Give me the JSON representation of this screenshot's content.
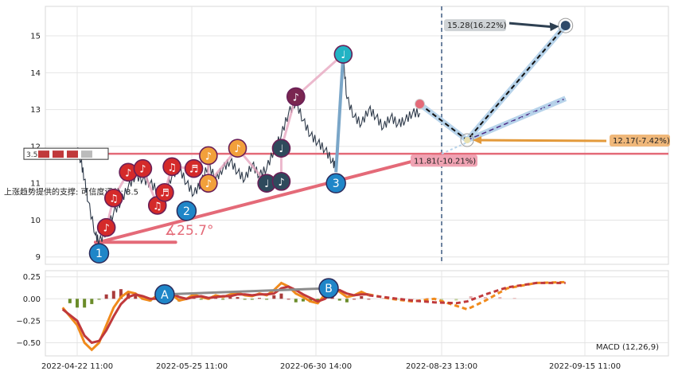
{
  "chart_data": [
    {
      "type": "line",
      "panel": "price",
      "ylim": [
        8.8,
        15.8
      ],
      "yticks": [
        9,
        10,
        11,
        12,
        13,
        14,
        15
      ],
      "x_dates": [
        "2022-04-22 11:00",
        "2022-05-25 11:00",
        "2022-06-30 14:00",
        "2022-08-23 13:00",
        "2022-09-15 11:00"
      ],
      "grid": true,
      "price_series": [
        [
          0.0,
          11.9
        ],
        [
          0.01,
          11.6
        ],
        [
          0.02,
          11.1
        ],
        [
          0.03,
          10.5
        ],
        [
          0.05,
          9.6
        ],
        [
          0.06,
          9.4
        ],
        [
          0.08,
          9.7
        ],
        [
          0.1,
          10.2
        ],
        [
          0.12,
          10.5
        ],
        [
          0.14,
          10.9
        ],
        [
          0.16,
          11.2
        ],
        [
          0.18,
          11.1
        ],
        [
          0.2,
          11.0
        ],
        [
          0.22,
          10.8
        ],
        [
          0.24,
          10.7
        ],
        [
          0.26,
          11.2
        ],
        [
          0.28,
          11.4
        ],
        [
          0.3,
          11.0
        ],
        [
          0.32,
          10.7
        ],
        [
          0.34,
          11.0
        ],
        [
          0.36,
          11.5
        ],
        [
          0.38,
          11.1
        ],
        [
          0.4,
          11.4
        ],
        [
          0.42,
          11.6
        ],
        [
          0.44,
          11.3
        ],
        [
          0.46,
          11.1
        ],
        [
          0.48,
          11.5
        ],
        [
          0.5,
          11.2
        ],
        [
          0.52,
          11.4
        ],
        [
          0.54,
          11.9
        ],
        [
          0.56,
          12.3
        ],
        [
          0.58,
          12.9
        ],
        [
          0.6,
          13.2
        ],
        [
          0.62,
          12.7
        ],
        [
          0.64,
          12.3
        ],
        [
          0.66,
          12.1
        ],
        [
          0.68,
          11.9
        ],
        [
          0.7,
          11.6
        ],
        [
          0.71,
          11.4
        ],
        [
          0.72,
          12.6
        ],
        [
          0.73,
          14.4
        ],
        [
          0.74,
          13.3
        ],
        [
          0.76,
          12.8
        ],
        [
          0.78,
          12.6
        ],
        [
          0.8,
          13.0
        ],
        [
          0.82,
          12.8
        ],
        [
          0.84,
          12.5
        ],
        [
          0.86,
          12.8
        ],
        [
          0.88,
          12.6
        ],
        [
          0.9,
          12.7
        ],
        [
          0.92,
          12.9
        ],
        [
          0.94,
          12.9
        ]
      ],
      "support_line": {
        "label": "上涨趋势提供的支撑: 可信度评分: 3.5",
        "confidence": "3.5",
        "from": [
          0.06,
          9.4
        ],
        "to": [
          1.0,
          11.8
        ]
      },
      "horizontal_level": 11.8,
      "angle_label": "∡25.7°",
      "waves": [
        {
          "label": "1",
          "x": 0.06,
          "y": 9.1,
          "color": "#1f86c8"
        },
        {
          "label": "2",
          "x": 0.3,
          "y": 10.25,
          "color": "#1f86c8"
        },
        {
          "label": "3",
          "x": 0.71,
          "y": 11.0,
          "color": "#1f86c8"
        }
      ],
      "notes": [
        {
          "x": 0.08,
          "y": 9.8,
          "glyph": "♪",
          "color": "#d42a2a"
        },
        {
          "x": 0.1,
          "y": 10.6,
          "glyph": "♫",
          "color": "#d42a2a"
        },
        {
          "x": 0.14,
          "y": 11.3,
          "glyph": "♪",
          "color": "#d42a2a"
        },
        {
          "x": 0.18,
          "y": 11.4,
          "glyph": "♪",
          "color": "#d42a2a"
        },
        {
          "x": 0.22,
          "y": 10.4,
          "glyph": "♫",
          "color": "#d42a2a"
        },
        {
          "x": 0.24,
          "y": 10.75,
          "glyph": "♬",
          "color": "#d42a2a"
        },
        {
          "x": 0.26,
          "y": 11.45,
          "glyph": "♫",
          "color": "#d42a2a"
        },
        {
          "x": 0.32,
          "y": 11.4,
          "glyph": "♬",
          "color": "#d42a2a"
        },
        {
          "x": 0.36,
          "y": 11.75,
          "glyph": "♪",
          "color": "#f2a03b"
        },
        {
          "x": 0.36,
          "y": 11.0,
          "glyph": "♪",
          "color": "#f2a03b"
        },
        {
          "x": 0.44,
          "y": 11.95,
          "glyph": "♪",
          "color": "#f2a03b"
        },
        {
          "x": 0.52,
          "y": 11.0,
          "glyph": "♩",
          "color": "#2e4a5c"
        },
        {
          "x": 0.56,
          "y": 11.05,
          "glyph": "♪",
          "color": "#2e4a5c"
        },
        {
          "x": 0.56,
          "y": 11.95,
          "glyph": "♩",
          "color": "#2e4a5c"
        },
        {
          "x": 0.6,
          "y": 13.35,
          "glyph": "♪",
          "color": "#7a2650"
        },
        {
          "x": 0.73,
          "y": 14.5,
          "glyph": "♩",
          "color": "#22b3c4"
        }
      ],
      "forecast": {
        "start": [
          0.94,
          13.15
        ],
        "mid": [
          1.07,
          12.17
        ],
        "upper_target": {
          "x": 1.34,
          "y": 15.28,
          "label": "15.28(16.22%)"
        },
        "middle_target": {
          "x": 1.34,
          "y": 13.3
        },
        "arrow_label": "12.17(-7.42%)",
        "support_label": "11.81(-10.21%)"
      },
      "legend_badge": "3.5"
    },
    {
      "type": "line",
      "panel": "macd",
      "title": "MACD (12,26,9)",
      "ylim": [
        -0.65,
        0.32
      ],
      "yticks": [
        -0.5,
        -0.25,
        0.0,
        0.25
      ],
      "yticklabels": [
        "−0.50",
        "−0.25",
        "0.00",
        "0.25"
      ],
      "markers": [
        {
          "label": "A",
          "x": 0.24,
          "y": 0.05
        },
        {
          "label": "B",
          "x": 0.69,
          "y": 0.12
        }
      ],
      "macd_line": [
        [
          -0.04,
          -0.1
        ],
        [
          0.0,
          -0.3
        ],
        [
          0.02,
          -0.5
        ],
        [
          0.04,
          -0.58
        ],
        [
          0.06,
          -0.5
        ],
        [
          0.08,
          -0.3
        ],
        [
          0.1,
          -0.1
        ],
        [
          0.12,
          0.02
        ],
        [
          0.14,
          0.08
        ],
        [
          0.16,
          0.06
        ],
        [
          0.18,
          0.0
        ],
        [
          0.2,
          -0.02
        ],
        [
          0.22,
          0.04
        ],
        [
          0.24,
          0.08
        ],
        [
          0.26,
          0.05
        ],
        [
          0.28,
          -0.02
        ],
        [
          0.3,
          0.0
        ],
        [
          0.32,
          0.05
        ],
        [
          0.34,
          0.02
        ],
        [
          0.36,
          0.0
        ],
        [
          0.38,
          0.04
        ],
        [
          0.4,
          0.02
        ],
        [
          0.42,
          0.05
        ],
        [
          0.44,
          0.07
        ],
        [
          0.46,
          0.04
        ],
        [
          0.48,
          0.03
        ],
        [
          0.5,
          0.06
        ],
        [
          0.52,
          0.04
        ],
        [
          0.54,
          0.1
        ],
        [
          0.56,
          0.18
        ],
        [
          0.58,
          0.14
        ],
        [
          0.6,
          0.06
        ],
        [
          0.62,
          0.02
        ],
        [
          0.64,
          -0.03
        ],
        [
          0.66,
          -0.05
        ],
        [
          0.68,
          0.05
        ],
        [
          0.7,
          0.14
        ],
        [
          0.72,
          0.08
        ],
        [
          0.74,
          0.02
        ],
        [
          0.76,
          0.04
        ],
        [
          0.78,
          0.08
        ],
        [
          0.8,
          0.04
        ]
      ],
      "signal_line": [
        [
          -0.04,
          -0.12
        ],
        [
          0.0,
          -0.25
        ],
        [
          0.02,
          -0.42
        ],
        [
          0.04,
          -0.5
        ],
        [
          0.06,
          -0.48
        ],
        [
          0.08,
          -0.36
        ],
        [
          0.1,
          -0.2
        ],
        [
          0.12,
          -0.06
        ],
        [
          0.14,
          0.02
        ],
        [
          0.16,
          0.05
        ],
        [
          0.18,
          0.03
        ],
        [
          0.2,
          0.0
        ],
        [
          0.22,
          0.0
        ],
        [
          0.24,
          0.05
        ],
        [
          0.26,
          0.06
        ],
        [
          0.28,
          0.02
        ],
        [
          0.3,
          0.0
        ],
        [
          0.32,
          0.02
        ],
        [
          0.34,
          0.03
        ],
        [
          0.36,
          0.01
        ],
        [
          0.38,
          0.02
        ],
        [
          0.4,
          0.03
        ],
        [
          0.42,
          0.03
        ],
        [
          0.44,
          0.05
        ],
        [
          0.46,
          0.05
        ],
        [
          0.48,
          0.04
        ],
        [
          0.5,
          0.05
        ],
        [
          0.52,
          0.05
        ],
        [
          0.54,
          0.06
        ],
        [
          0.56,
          0.12
        ],
        [
          0.58,
          0.14
        ],
        [
          0.6,
          0.1
        ],
        [
          0.62,
          0.05
        ],
        [
          0.64,
          0.01
        ],
        [
          0.66,
          -0.03
        ],
        [
          0.68,
          0.0
        ],
        [
          0.7,
          0.08
        ],
        [
          0.72,
          0.1
        ],
        [
          0.74,
          0.06
        ],
        [
          0.76,
          0.04
        ],
        [
          0.78,
          0.05
        ],
        [
          0.8,
          0.05
        ]
      ],
      "forecast_macd": [
        [
          0.8,
          0.05
        ],
        [
          0.86,
          0.0
        ],
        [
          0.92,
          -0.03
        ],
        [
          0.98,
          0.0
        ],
        [
          1.04,
          -0.08
        ],
        [
          1.07,
          -0.12
        ],
        [
          1.12,
          -0.02
        ],
        [
          1.18,
          0.12
        ],
        [
          1.26,
          0.18
        ],
        [
          1.34,
          0.19
        ]
      ],
      "forecast_signal": [
        [
          0.8,
          0.04
        ],
        [
          0.86,
          0.01
        ],
        [
          0.92,
          -0.02
        ],
        [
          0.98,
          -0.04
        ],
        [
          1.04,
          -0.05
        ],
        [
          1.07,
          -0.03
        ],
        [
          1.12,
          0.05
        ],
        [
          1.18,
          0.13
        ],
        [
          1.26,
          0.18
        ],
        [
          1.34,
          0.18
        ]
      ],
      "histogram": [
        [
          -0.02,
          -0.05
        ],
        [
          0.0,
          -0.1
        ],
        [
          0.02,
          -0.1
        ],
        [
          0.04,
          -0.06
        ],
        [
          0.06,
          -0.01
        ],
        [
          0.08,
          0.05
        ],
        [
          0.1,
          0.09
        ],
        [
          0.12,
          0.11
        ],
        [
          0.14,
          0.08
        ],
        [
          0.16,
          0.04
        ],
        [
          0.18,
          -0.01
        ],
        [
          0.2,
          -0.03
        ],
        [
          0.22,
          0.03
        ],
        [
          0.24,
          0.04
        ],
        [
          0.26,
          -0.01
        ],
        [
          0.28,
          -0.03
        ],
        [
          0.3,
          0.0
        ],
        [
          0.32,
          0.03
        ],
        [
          0.34,
          -0.01
        ],
        [
          0.36,
          -0.01
        ],
        [
          0.38,
          0.02
        ],
        [
          0.4,
          -0.01
        ],
        [
          0.42,
          0.02
        ],
        [
          0.44,
          0.02
        ],
        [
          0.46,
          -0.01
        ],
        [
          0.48,
          -0.01
        ],
        [
          0.5,
          0.01
        ],
        [
          0.52,
          -0.01
        ],
        [
          0.54,
          0.04
        ],
        [
          0.56,
          0.06
        ],
        [
          0.58,
          0.0
        ],
        [
          0.6,
          -0.04
        ],
        [
          0.62,
          -0.03
        ],
        [
          0.64,
          -0.04
        ],
        [
          0.66,
          -0.02
        ],
        [
          0.68,
          0.05
        ],
        [
          0.7,
          0.06
        ],
        [
          0.72,
          -0.02
        ],
        [
          0.74,
          -0.04
        ],
        [
          0.76,
          0.0
        ],
        [
          0.78,
          0.03
        ],
        [
          0.8,
          0.0
        ],
        [
          0.84,
          0.01
        ],
        [
          0.88,
          -0.01
        ],
        [
          0.92,
          0.0
        ],
        [
          0.96,
          0.01
        ],
        [
          1.0,
          -0.02
        ],
        [
          1.04,
          -0.02
        ],
        [
          1.08,
          0.03
        ],
        [
          1.12,
          0.02
        ],
        [
          1.16,
          0.02
        ],
        [
          1.2,
          0.01
        ]
      ]
    }
  ]
}
